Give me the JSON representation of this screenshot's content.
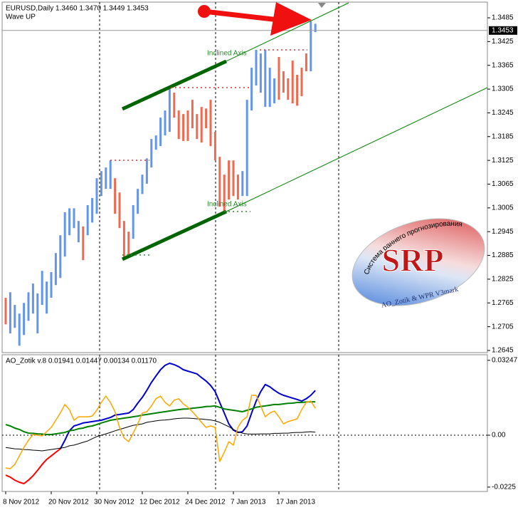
{
  "chart_data": [
    {
      "type": "range-bar",
      "title": "EURUSD,Daily  1.3460 1.3470 1.3449 1.3453",
      "subtitle": "Wave UP",
      "annotations": [
        "Inclined Axis",
        "Inclined Axis"
      ],
      "logo": {
        "arc_text": "Система раннего прогнозирования",
        "title": "SRP",
        "caption": "AO_Zotik & WPR V3mark"
      },
      "categories": [
        "8 Nov 2012",
        null,
        null,
        null,
        null,
        null,
        null,
        null,
        null,
        null,
        "20 Nov 2012",
        null,
        null,
        null,
        null,
        null,
        null,
        null,
        null,
        null,
        "30 Nov 2012",
        null,
        null,
        null,
        null,
        null,
        null,
        null,
        null,
        null,
        "12 Dec 2012",
        null,
        null,
        null,
        null,
        null,
        null,
        null,
        null,
        null,
        "24 Dec 2012",
        null,
        null,
        null,
        null,
        null,
        null,
        null,
        null,
        null,
        "7 Jan 2013",
        null,
        null,
        null,
        null,
        null,
        null,
        null,
        null,
        null,
        "17 Jan 2013",
        null,
        null,
        null,
        null,
        null,
        null,
        null,
        null
      ],
      "high": [
        1.2778,
        1.2792,
        1.276,
        1.2738,
        1.2765,
        1.2792,
        1.2814,
        1.2789,
        1.2846,
        1.2819,
        1.2843,
        1.2891,
        1.2936,
        1.2994,
        1.3004,
        1.3004,
        1.2972,
        1.2958,
        1.3012,
        1.303,
        1.308,
        1.3098,
        1.3107,
        1.3125,
        1.308,
        1.3044,
        1.2972,
        1.2945,
        1.3012,
        1.3053,
        1.3089,
        1.313,
        1.3179,
        1.3188,
        1.3233,
        1.3251,
        1.3305,
        1.3296,
        1.3251,
        1.3242,
        1.3251,
        1.3278,
        1.3242,
        1.326,
        1.3256,
        1.3278,
        1.3197,
        1.3134,
        1.3089,
        1.3125,
        1.3125,
        1.3089,
        1.3098,
        1.3278,
        1.3359,
        1.3404,
        1.3395,
        1.3404,
        1.3359,
        1.3332,
        1.3386,
        1.335,
        1.3332,
        1.3377,
        1.3341,
        1.3359,
        1.3395,
        1.3476,
        1.347
      ],
      "low": [
        1.2711,
        1.2688,
        1.2702,
        1.2657,
        1.2684,
        1.272,
        1.2738,
        1.2688,
        1.276,
        1.2738,
        1.2778,
        1.281,
        1.2828,
        1.2882,
        1.2936,
        1.2954,
        1.2918,
        1.2873,
        1.2936,
        1.2968,
        1.299,
        1.3035,
        1.3053,
        1.3053,
        1.299,
        1.2954,
        1.2879,
        1.2882,
        1.2927,
        1.299,
        1.304,
        1.3066,
        1.3107,
        1.3152,
        1.3161,
        1.3188,
        1.3197,
        1.3233,
        1.3179,
        1.3174,
        1.3174,
        1.3206,
        1.3179,
        1.317,
        1.3206,
        1.3161,
        1.3125,
        1.3008,
        1.299,
        1.3026,
        1.3035,
        1.3026,
        1.3035,
        1.3035,
        1.3251,
        1.3314,
        1.3296,
        1.326,
        1.326,
        1.3269,
        1.3278,
        1.3296,
        1.3278,
        1.3269,
        1.3263,
        1.3287,
        1.335,
        1.335,
        1.3449
      ],
      "rising": [
        false,
        true,
        true,
        true,
        true,
        true,
        true,
        true,
        true,
        true,
        true,
        true,
        true,
        true,
        true,
        true,
        true,
        false,
        true,
        true,
        true,
        true,
        true,
        true,
        false,
        false,
        false,
        false,
        true,
        true,
        true,
        true,
        true,
        true,
        true,
        true,
        true,
        false,
        false,
        false,
        false,
        false,
        false,
        false,
        false,
        false,
        false,
        false,
        false,
        false,
        false,
        false,
        true,
        true,
        true,
        true,
        true,
        true,
        true,
        true,
        false,
        false,
        false,
        false,
        false,
        false,
        false,
        true,
        true
      ],
      "up_color": "#6495ed",
      "down_color": "#f0694e",
      "current_price": 1.3453,
      "ylim": [
        1.2645,
        1.353
      ],
      "yticks": [
        1.2645,
        1.2705,
        1.2765,
        1.2825,
        1.2885,
        1.2945,
        1.3005,
        1.3065,
        1.3125,
        1.3185,
        1.3245,
        1.3305,
        1.3365,
        1.3425,
        1.3485
      ]
    },
    {
      "type": "line",
      "title": "AO_Zotik v.8 0.01941 0.01447 0.00134 0.01170",
      "ylim": [
        -0.0244,
        0.0349
      ],
      "yticks": [
        0.03247,
        {
          "value": 0,
          "label": "0.00"
        },
        -0.0225
      ],
      "series": [
        {
          "color": "#ff0000",
          "width": 2,
          "values": [
            -0.0173,
            -0.0182,
            -0.0195,
            -0.0204,
            -0.021,
            -0.0195,
            -0.0176,
            -0.0152,
            -0.0127,
            -0.0105,
            -0.009,
            -0.0074,
            -0.0059,
            null,
            null,
            null,
            null,
            null,
            null,
            null,
            null,
            null,
            null,
            null,
            null,
            null,
            null,
            null,
            null,
            null,
            null,
            null,
            null,
            null,
            null,
            null,
            null,
            null,
            null,
            null,
            null,
            null,
            null,
            null,
            null,
            null,
            null,
            null,
            null,
            null,
            null,
            null,
            null,
            null,
            null,
            null,
            null,
            null,
            null,
            null,
            null,
            null,
            null,
            null,
            null,
            null,
            null,
            null,
            null
          ]
        },
        {
          "color": "#0000cc",
          "width": 2,
          "values": [
            null,
            null,
            null,
            null,
            null,
            null,
            null,
            null,
            null,
            null,
            null,
            null,
            -0.0059,
            -0.0022,
            0.0019,
            0.004,
            0.0046,
            0.0053,
            0.0056,
            0.0059,
            0.0062,
            0.0065,
            0.0071,
            0.0077,
            0.0087,
            0.009,
            0.0093,
            0.0096,
            0.0111,
            0.0139,
            0.0164,
            0.0195,
            0.0229,
            0.0257,
            0.0284,
            0.0303,
            0.0312,
            0.0306,
            0.0297,
            0.0284,
            0.0278,
            0.0272,
            0.0266,
            0.025,
            0.0235,
            0.0216,
            0.0189,
            0.0142,
            0.0096,
            0.0049,
            0.0022,
            0.0012,
            0.0015,
            0.004,
            0.0096,
            0.0148,
            0.0189,
            0.022,
            0.021,
            0.0195,
            0.0182,
            0.0173,
            0.0167,
            0.0161,
            0.0155,
            0.0148,
            0.0158,
            0.0173,
            0.0194
          ]
        },
        {
          "color": "#008000",
          "width": 2,
          "values": [
            0.0046,
            0.004,
            0.0031,
            0.0025,
            0.0015,
            0.0009,
            0.0008,
            0.0006,
            0.0005,
            0.0003,
            0.0003,
            0.0006,
            0.0009,
            0.0012,
            0.0019,
            0.0022,
            0.0028,
            0.0031,
            0.0037,
            0.004,
            0.0046,
            0.0053,
            0.0059,
            0.0065,
            0.0068,
            0.0071,
            0.0074,
            0.0077,
            0.008,
            0.0083,
            0.0087,
            0.009,
            0.0093,
            0.0096,
            0.0099,
            0.0102,
            0.0105,
            0.0108,
            0.0111,
            0.0113,
            0.0114,
            0.0117,
            0.0119,
            0.0121,
            0.0124,
            0.0125,
            0.0127,
            0.0121,
            0.0114,
            0.0111,
            0.0108,
            0.0105,
            0.0102,
            0.0108,
            0.0114,
            0.0121,
            0.0124,
            0.0127,
            0.013,
            0.0133,
            0.0133,
            0.0136,
            0.0138,
            0.0139,
            0.0142,
            0.0142,
            0.0144,
            0.0145,
            0.01447
          ]
        },
        {
          "color": "#000000",
          "width": 1,
          "values": [
            -0.0053,
            -0.0056,
            -0.0059,
            -0.006,
            -0.0062,
            -0.0063,
            -0.0065,
            -0.0066,
            -0.0068,
            -0.0065,
            -0.0062,
            -0.0059,
            -0.0056,
            -0.0053,
            -0.0046,
            -0.0043,
            -0.0037,
            -0.0031,
            -0.0025,
            -0.0015,
            -0.0006,
            0,
            0.0006,
            0.0012,
            0.0019,
            0.0025,
            0.0031,
            0.0037,
            0.0043,
            0.0046,
            0.0049,
            0.0056,
            0.0059,
            0.0062,
            0.0065,
            0.0066,
            0.0068,
            0.0071,
            0.0073,
            0.0074,
            0.0074,
            0.0073,
            0.0071,
            0.007,
            0.0068,
            0.0066,
            0.0062,
            0.0056,
            0.0046,
            0.0037,
            0.0025,
            0.0015,
            0.0009,
            0.0006,
            0.0005,
            0.0005,
            0.0006,
            0.0006,
            0.0006,
            0.0008,
            0.0008,
            0.0009,
            0.0009,
            0.0011,
            0.0012,
            0.0012,
            0.0014,
            0.0015,
            0.00134
          ]
        },
        {
          "color": "#ffa500",
          "width": 1.5,
          "values": [
            -0.0142,
            -0.0145,
            -0.0127,
            -0.009,
            -0.0053,
            -0.0022,
            0.0003,
            0,
            -0.0003,
            0.0015,
            0.0034,
            0.0065,
            0.0096,
            0.0133,
            0.0111,
            0.0065,
            0.008,
            0.008,
            0.008,
            0.0083,
            0.0108,
            0.0142,
            0.017,
            0.0142,
            0.0102,
            0.0034,
            -0.0012,
            -0.0028,
            0.0009,
            0.0049,
            0.0096,
            0.0102,
            0.0127,
            0.0158,
            0.017,
            0.0142,
            0.0127,
            0.0152,
            0.0158,
            0.0136,
            0.0121,
            0.0102,
            0.008,
            0.0056,
            0.0034,
            0.004,
            0.0034,
            -0.0114,
            -0.0074,
            -0.0028,
            -0.0043,
            0.0034,
            0.0065,
            0.008,
            0.0173,
            0.0173,
            0.0127,
            0.008,
            0.0096,
            0.0105,
            0.008,
            0.0049,
            0.0059,
            0.0065,
            0.0071,
            0.0111,
            0.0142,
            0.0148,
            0.0117
          ]
        }
      ]
    }
  ]
}
